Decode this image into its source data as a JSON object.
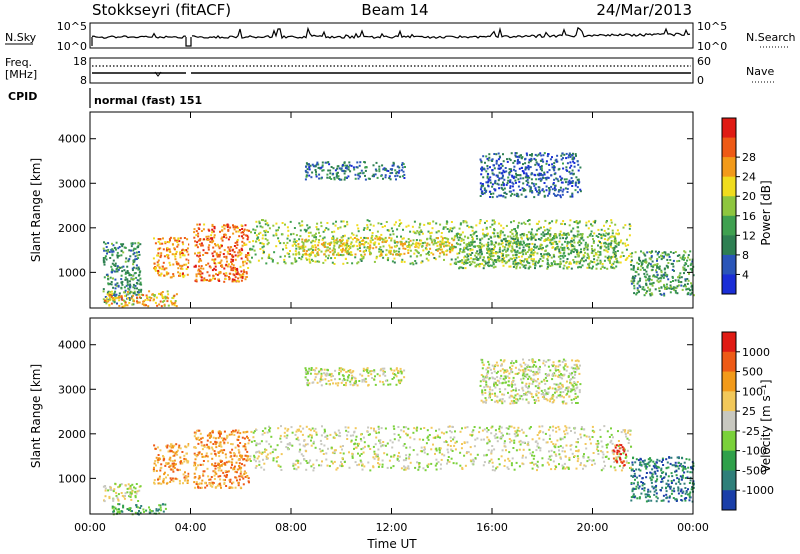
{
  "header": {
    "station": "Stokkseyri (fitACF)",
    "beam": "Beam 14",
    "date": "24/Mar/2013"
  },
  "status_panels": {
    "nsky": {
      "label": "N.Sky",
      "ticks": [
        "10^5",
        "10^0"
      ]
    },
    "nsearch": {
      "label": "N.Search",
      "ticks": [
        "10^5",
        "10^0"
      ]
    },
    "freq": {
      "label_line1": "Freq.",
      "label_line2": "[MHz]",
      "ticks": [
        "18",
        "8"
      ]
    },
    "nave": {
      "label": "Nave",
      "ticks": [
        "60",
        "0"
      ]
    },
    "cpid": {
      "label": "CPID",
      "value": "normal (fast) 151"
    }
  },
  "chart_data": [
    {
      "type": "heatmap",
      "title": "",
      "quantity": "Power",
      "xlabel": "",
      "ylabel": "Slant Range [km]",
      "colorbar_label": "Power [dB]",
      "x_ticks": [
        "00:00",
        "04:00",
        "08:00",
        "12:00",
        "16:00",
        "20:00",
        "00:00"
      ],
      "y_ticks": [
        1000,
        2000,
        3000,
        4000
      ],
      "ylim": [
        200,
        4600
      ],
      "x_range_hours": [
        0,
        24
      ],
      "colorbar_ticks": [
        "4",
        "8",
        "12",
        "16",
        "20",
        "24",
        "28"
      ],
      "colorbar_range": [
        0,
        32
      ],
      "colors": [
        "#1a2ed6",
        "#2a55b8",
        "#2e7f52",
        "#3fa050",
        "#8ec63f",
        "#f0dc1e",
        "#f29a1a",
        "#ee5a16",
        "#e01b14"
      ],
      "regions": [
        {
          "t0": 0.5,
          "t1": 2.0,
          "r0": 300,
          "r1": 1700,
          "level": 8
        },
        {
          "t0": 0.5,
          "t1": 3.5,
          "r0": 250,
          "r1": 600,
          "level": 20
        },
        {
          "t0": 2.5,
          "t1": 3.9,
          "r0": 900,
          "r1": 1800,
          "level": 22
        },
        {
          "t0": 4.1,
          "t1": 6.3,
          "r0": 800,
          "r1": 2100,
          "level": 24
        },
        {
          "t0": 6.3,
          "t1": 21.5,
          "r0": 1200,
          "r1": 2200,
          "level": 14
        },
        {
          "t0": 8.0,
          "t1": 14.5,
          "r0": 1400,
          "r1": 1800,
          "level": 18
        },
        {
          "t0": 14.5,
          "t1": 21.0,
          "r0": 1100,
          "r1": 1900,
          "level": 12
        },
        {
          "t0": 8.5,
          "t1": 12.5,
          "r0": 3100,
          "r1": 3500,
          "level": 6
        },
        {
          "t0": 15.5,
          "t1": 19.5,
          "r0": 2700,
          "r1": 3700,
          "level": 4
        },
        {
          "t0": 21.5,
          "t1": 24.0,
          "r0": 500,
          "r1": 1500,
          "level": 10
        }
      ]
    },
    {
      "type": "heatmap",
      "title": "",
      "quantity": "Velocity",
      "xlabel": "Time UT",
      "ylabel": "Slant Range [km]",
      "colorbar_label": "Velocity [m s⁻¹]",
      "x_ticks": [
        "00:00",
        "04:00",
        "08:00",
        "12:00",
        "16:00",
        "20:00",
        "00:00"
      ],
      "y_ticks": [
        1000,
        2000,
        3000,
        4000
      ],
      "ylim": [
        200,
        4600
      ],
      "x_range_hours": [
        0,
        24
      ],
      "colorbar_ticks": [
        "1000",
        "500",
        "100",
        "25",
        "-25",
        "-100",
        "-500",
        "-1000"
      ],
      "colors": [
        "#1a3ea8",
        "#2f7f7a",
        "#2fa04a",
        "#7ad13a",
        "#c8c8c0",
        "#f2c85a",
        "#f29a1a",
        "#ee5a16",
        "#e01b14"
      ],
      "regions": [
        {
          "t0": 0.5,
          "t1": 2.0,
          "r0": 500,
          "r1": 900,
          "level": 4
        },
        {
          "t0": 0.8,
          "t1": 3.0,
          "r0": 200,
          "r1": 450,
          "level": 2
        },
        {
          "t0": 2.5,
          "t1": 3.9,
          "r0": 900,
          "r1": 1800,
          "level": 6
        },
        {
          "t0": 4.1,
          "t1": 6.3,
          "r0": 800,
          "r1": 2100,
          "level": 6
        },
        {
          "t0": 6.3,
          "t1": 21.5,
          "r0": 1200,
          "r1": 2200,
          "level": 4
        },
        {
          "t0": 8.5,
          "t1": 12.5,
          "r0": 3100,
          "r1": 3500,
          "level": 4
        },
        {
          "t0": 15.5,
          "t1": 19.5,
          "r0": 2700,
          "r1": 3700,
          "level": 4
        },
        {
          "t0": 20.8,
          "t1": 21.3,
          "r0": 1300,
          "r1": 1800,
          "level": 8
        },
        {
          "t0": 21.5,
          "t1": 24.0,
          "r0": 500,
          "r1": 1500,
          "level": 1
        }
      ]
    }
  ]
}
